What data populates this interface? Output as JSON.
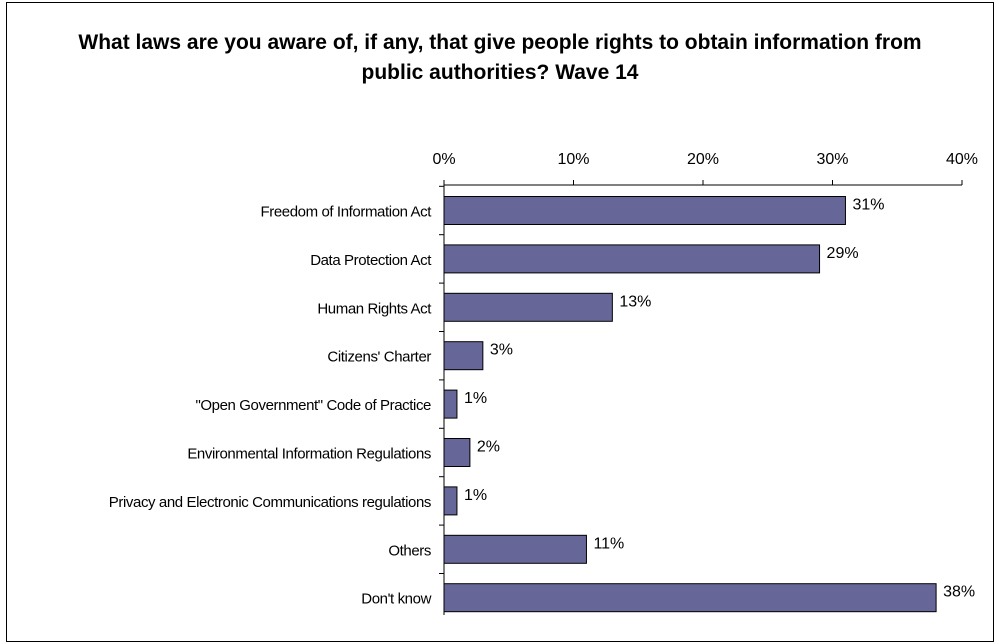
{
  "chart_data": {
    "type": "bar",
    "orientation": "horizontal",
    "title": "What laws are you aware of, if any, that give people rights to obtain information from public authorities? Wave 14",
    "categories": [
      "Freedom of Information Act",
      "Data Protection Act",
      "Human Rights Act",
      "Citizens' Charter",
      "\"Open Government\" Code of Practice",
      "Environmental Information Regulations",
      "Privacy and Electronic Communications regulations",
      "Others",
      "Don't know"
    ],
    "values": [
      31,
      29,
      13,
      3,
      1,
      2,
      1,
      11,
      38
    ],
    "data_labels": [
      "31%",
      "29%",
      "13%",
      "3%",
      "1%",
      "2%",
      "1%",
      "11%",
      "38%"
    ],
    "xlim": [
      0,
      40
    ],
    "x_ticks": [
      0,
      10,
      20,
      30,
      40
    ],
    "x_tick_labels": [
      "0%",
      "10%",
      "20%",
      "30%",
      "40%"
    ],
    "x_axis_position": "top",
    "grid": false,
    "legend": "none",
    "bar_color": "#666699",
    "bar_edge_color": "#000000"
  }
}
